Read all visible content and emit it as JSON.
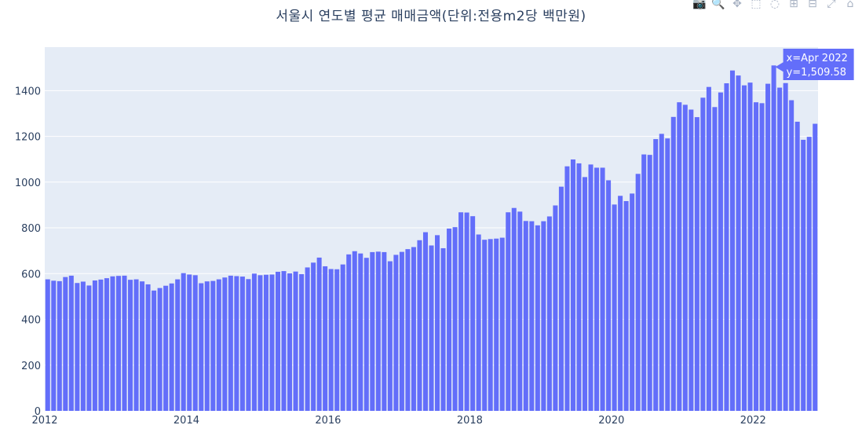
{
  "title": "서울시 연도별 평균 매매금액(단위:전용m2당 백만원)",
  "modebar": [
    {
      "name": "camera-icon",
      "glyph": "📷"
    },
    {
      "name": "zoom-icon",
      "glyph": "🔍"
    },
    {
      "name": "pan-icon",
      "glyph": "✥"
    },
    {
      "name": "box-select-icon",
      "glyph": "⬚"
    },
    {
      "name": "lasso-icon",
      "glyph": "◌"
    },
    {
      "name": "zoom-in-icon",
      "glyph": "⊞"
    },
    {
      "name": "zoom-out-icon",
      "glyph": "⊟"
    },
    {
      "name": "autoscale-icon",
      "glyph": "⤢"
    },
    {
      "name": "reset-axes-icon",
      "glyph": "⌂"
    }
  ],
  "tooltip": {
    "x_text": "x=Apr 2022",
    "y_text": "y=1,509.58",
    "bar_index": 123
  },
  "colors": {
    "bar": "#636efa",
    "plot_bg": "#e5ecf6",
    "grid": "#ffffff",
    "tooltip_bg": "#636efa",
    "text": "#2a3f5f"
  },
  "chart_data": {
    "type": "bar",
    "title": "서울시 연도별 평균 매매금액(단위:전용m2당 백만원)",
    "xlabel": "",
    "ylabel": "",
    "x_start": "Jan 2012",
    "x_end": "Nov 2022",
    "frequency": "monthly",
    "xticks": [
      "2012",
      "2014",
      "2016",
      "2018",
      "2020",
      "2022"
    ],
    "yticks": [
      0,
      200,
      400,
      600,
      800,
      1000,
      1200,
      1400
    ],
    "ylim": [
      0,
      1590
    ],
    "grid": true,
    "values": [
      575,
      569,
      567,
      585,
      591,
      559,
      565,
      548,
      570,
      574,
      580,
      588,
      590,
      591,
      573,
      575,
      566,
      553,
      526,
      537,
      547,
      557,
      575,
      602,
      596,
      593,
      558,
      566,
      568,
      575,
      583,
      591,
      589,
      587,
      576,
      600,
      593,
      595,
      596,
      608,
      611,
      601,
      609,
      598,
      627,
      648,
      670,
      632,
      620,
      619,
      640,
      684,
      698,
      688,
      669,
      694,
      696,
      694,
      654,
      682,
      695,
      707,
      716,
      746,
      781,
      723,
      768,
      711,
      797,
      803,
      868,
      867,
      851,
      771,
      748,
      751,
      753,
      757,
      868,
      887,
      871,
      830,
      829,
      811,
      829,
      850,
      898,
      980,
      1069,
      1099,
      1082,
      1022,
      1077,
      1063,
      1063,
      1008,
      902,
      940,
      917,
      950,
      1036,
      1121,
      1119,
      1188,
      1211,
      1191,
      1285,
      1349,
      1338,
      1317,
      1284,
      1369,
      1416,
      1328,
      1392,
      1432,
      1488,
      1466,
      1423,
      1435,
      1349,
      1345,
      1430,
      1510,
      1413,
      1433,
      1358,
      1264,
      1185,
      1198,
      1255
    ]
  }
}
